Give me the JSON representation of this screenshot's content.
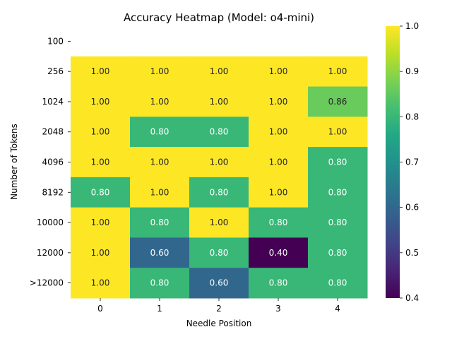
{
  "chart_data": {
    "type": "heatmap",
    "title": "Accuracy Heatmap (Model: o4-mini)",
    "xlabel": "Needle Position",
    "ylabel": "Number of Tokens",
    "x_categories": [
      "0",
      "1",
      "2",
      "3",
      "4"
    ],
    "y_categories": [
      "100",
      "256",
      "1024",
      "2048",
      "4096",
      "8192",
      "10000",
      "12000",
      ">12000"
    ],
    "values": [
      [
        null,
        null,
        null,
        null,
        null
      ],
      [
        1.0,
        1.0,
        1.0,
        1.0,
        1.0
      ],
      [
        1.0,
        1.0,
        1.0,
        1.0,
        0.86
      ],
      [
        1.0,
        0.8,
        0.8,
        1.0,
        1.0
      ],
      [
        1.0,
        1.0,
        1.0,
        1.0,
        0.8
      ],
      [
        0.8,
        1.0,
        0.8,
        1.0,
        0.8
      ],
      [
        1.0,
        0.8,
        1.0,
        0.8,
        0.8
      ],
      [
        1.0,
        0.6,
        0.8,
        0.4,
        0.8
      ],
      [
        1.0,
        0.8,
        0.6,
        0.8,
        0.8
      ]
    ],
    "value_format": "0.00",
    "colormap": "viridis",
    "vmin": 0.4,
    "vmax": 1.0,
    "colorbar_ticks": [
      "0.4",
      "0.5",
      "0.6",
      "0.7",
      "0.8",
      "0.9",
      "1.0"
    ],
    "grid": false
  }
}
